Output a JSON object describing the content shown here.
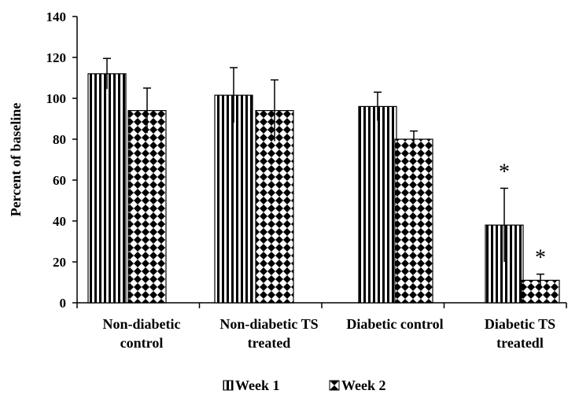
{
  "chart_data": {
    "type": "bar",
    "title": "",
    "xlabel": "",
    "ylabel": "Percent of baseline",
    "ylim": [
      0,
      140
    ],
    "yticks": [
      0,
      20,
      40,
      60,
      80,
      100,
      120,
      140
    ],
    "grid": false,
    "legend_position": "bottom",
    "categories": [
      [
        "Non-diabetic",
        "control"
      ],
      [
        "Non-diabetic TS",
        "treated"
      ],
      [
        "Diabetic control"
      ],
      [
        "Diabetic TS",
        "treatedl"
      ]
    ],
    "series": [
      {
        "name": "Week 1",
        "pattern": "vertical-stripes",
        "values": [
          112,
          101.5,
          96,
          38
        ],
        "errors": [
          7.5,
          13.5,
          7,
          18
        ]
      },
      {
        "name": "Week 2",
        "pattern": "checkerboard-diamond",
        "values": [
          94,
          94,
          80,
          11
        ],
        "errors": [
          11,
          15,
          4,
          3
        ]
      }
    ],
    "annotations": [
      {
        "text": "*",
        "category_index": 3,
        "series_index": 0
      },
      {
        "text": "*",
        "category_index": 3,
        "series_index": 1
      }
    ]
  }
}
